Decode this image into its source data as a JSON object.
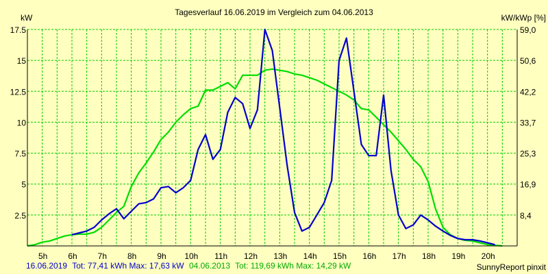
{
  "chart_data": {
    "type": "line",
    "title": "Tagesverlauf 16.06.2019 im Vergleich zum 04.06.2013",
    "ylabel_left": "kW",
    "ylabel_right": "kW/kWp [%]",
    "xlim": [
      4.5,
      21.0
    ],
    "ylim": [
      0,
      17.5
    ],
    "x_ticks": [
      5,
      6,
      7,
      8,
      9,
      10,
      11,
      12,
      13,
      14,
      15,
      16,
      17,
      18,
      19,
      20
    ],
    "x_tick_labels": [
      "5h",
      "6h",
      "7h",
      "8h",
      "9h",
      "10h",
      "11h",
      "12h",
      "13h",
      "14h",
      "15h",
      "16h",
      "17h",
      "18h",
      "19h",
      "20h"
    ],
    "y_ticks": [
      2.5,
      5,
      7.5,
      10,
      12.5,
      15,
      17.5
    ],
    "y_tick_labels": [
      "2.5",
      "5",
      "7.5",
      "10",
      "12.5",
      "15",
      "17.5"
    ],
    "y2_ticks": [
      2.5,
      5,
      7.5,
      10,
      12.5,
      15,
      17.5
    ],
    "y2_tick_labels": [
      "8,4",
      "16,9",
      "25,3",
      "33,7",
      "42,2",
      "50,6",
      "59,0"
    ],
    "grid": true,
    "series": [
      {
        "name": "16.06.2019",
        "color": "#0000cc",
        "x": [
          6.0,
          6.25,
          6.5,
          6.75,
          7.0,
          7.25,
          7.5,
          7.75,
          8.0,
          8.25,
          8.5,
          8.75,
          9.0,
          9.25,
          9.5,
          9.75,
          10.0,
          10.25,
          10.5,
          10.75,
          11.0,
          11.25,
          11.5,
          11.75,
          12.0,
          12.25,
          12.5,
          12.75,
          13.0,
          13.25,
          13.5,
          13.75,
          14.0,
          14.25,
          14.5,
          14.75,
          15.0,
          15.25,
          15.5,
          15.75,
          16.0,
          16.25,
          16.5,
          16.75,
          17.0,
          17.25,
          17.5,
          17.75,
          18.0,
          18.25,
          18.5,
          18.75,
          19.0,
          19.25,
          19.5,
          19.75,
          20.0,
          20.25
        ],
        "y": [
          0.9,
          1.05,
          1.2,
          1.5,
          2.1,
          2.6,
          3.0,
          2.2,
          2.8,
          3.4,
          3.5,
          3.8,
          4.7,
          4.8,
          4.3,
          4.7,
          5.3,
          7.8,
          9.0,
          7.0,
          7.8,
          10.8,
          12.0,
          11.5,
          9.5,
          11.0,
          17.5,
          15.8,
          11.2,
          6.5,
          2.7,
          1.2,
          1.5,
          2.5,
          3.5,
          5.3,
          15.0,
          16.8,
          12.5,
          8.2,
          7.3,
          7.3,
          12.2,
          6.1,
          2.5,
          1.4,
          1.7,
          2.5,
          2.1,
          1.6,
          1.2,
          0.85,
          0.6,
          0.5,
          0.5,
          0.4,
          0.25,
          0.1
        ]
      },
      {
        "name": "04.06.2013",
        "color": "#00dd00",
        "x": [
          4.5,
          4.75,
          5.0,
          5.25,
          5.5,
          5.75,
          6.0,
          6.25,
          6.5,
          6.75,
          7.0,
          7.25,
          7.5,
          7.75,
          8.0,
          8.25,
          8.5,
          8.75,
          9.0,
          9.25,
          9.5,
          9.75,
          10.0,
          10.25,
          10.5,
          10.75,
          11.0,
          11.25,
          11.5,
          11.75,
          12.0,
          12.25,
          12.5,
          12.75,
          13.0,
          13.25,
          13.5,
          13.75,
          14.0,
          14.25,
          14.5,
          14.75,
          15.0,
          15.25,
          15.5,
          15.75,
          16.0,
          16.25,
          16.5,
          16.75,
          17.0,
          17.25,
          17.5,
          17.75,
          18.0,
          18.25,
          18.5,
          18.75,
          19.0,
          19.25,
          19.5,
          19.75,
          20.0,
          20.25,
          20.5
        ],
        "y": [
          0.0,
          0.1,
          0.3,
          0.4,
          0.6,
          0.8,
          0.9,
          0.95,
          0.95,
          1.1,
          1.5,
          2.1,
          2.7,
          3.2,
          4.8,
          5.9,
          6.7,
          7.6,
          8.6,
          9.2,
          10.0,
          10.6,
          11.1,
          11.3,
          12.6,
          12.6,
          12.9,
          13.2,
          12.7,
          13.8,
          13.8,
          13.8,
          14.2,
          14.3,
          14.2,
          14.1,
          13.9,
          13.8,
          13.6,
          13.4,
          13.1,
          12.8,
          12.5,
          12.2,
          11.8,
          11.1,
          11.0,
          10.4,
          9.8,
          9.2,
          8.5,
          7.8,
          7.0,
          6.4,
          5.2,
          3.0,
          1.5,
          0.9,
          0.6,
          0.45,
          0.4,
          0.25,
          0.1,
          0.05,
          0.0
        ]
      }
    ],
    "footer": {
      "series1_name": "16.06.2019",
      "series1_info": "Tot: 77,41 kWh Max: 17,63 kW",
      "series2_name": "04.06.2013",
      "series2_info": "Tot: 119,69 kWh Max: 14,29 kW",
      "credit": "SunnyReport pinxit"
    }
  },
  "colors": {
    "background": "#ffffc0",
    "plot_background": "#ffffc0",
    "grid": "#00cc00",
    "series1": "#0000cc",
    "series2": "#00dd00"
  }
}
